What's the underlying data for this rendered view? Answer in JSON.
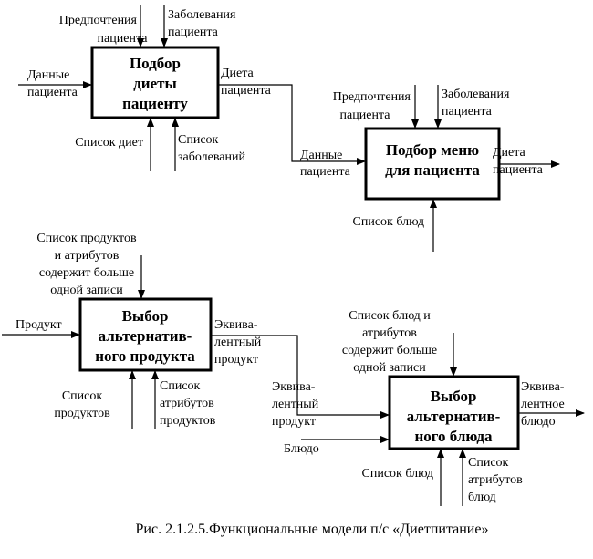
{
  "blocks": {
    "b1": {
      "title": [
        "Подбор",
        "диеты",
        "пациенту"
      ]
    },
    "b2": {
      "title": [
        "Подбор меню",
        "для пациента"
      ]
    },
    "b3": {
      "title": [
        "Выбор",
        "альтернатив-",
        "ного продукта"
      ]
    },
    "b4": {
      "title": [
        "Выбор",
        "альтернатив-",
        "ного блюда"
      ]
    }
  },
  "labels": {
    "b1_ctrl1": [
      "Предпочтения",
      "пациента"
    ],
    "b1_ctrl2": [
      "Заболевания",
      "пациента"
    ],
    "b1_in": [
      "Данные",
      "пациента"
    ],
    "b1_out": [
      "Диета",
      "пациента"
    ],
    "b1_mech1": [
      "Список диет"
    ],
    "b1_mech2": [
      "Список",
      "заболеваний"
    ],
    "b2_ctrl1": [
      "Предпочтения",
      "пациента"
    ],
    "b2_ctrl2": [
      "Заболевания",
      "пациента"
    ],
    "b2_in": [
      "Данные",
      "пациента"
    ],
    "b2_out": [
      "Диета",
      "пациента"
    ],
    "b2_mech": [
      "Список блюд"
    ],
    "b3_ctrl": [
      "Список продуктов",
      "и атрибутов",
      "содержит больше",
      "одной записи"
    ],
    "b3_in": [
      "Продукт"
    ],
    "b3_out": [
      "Эквива-",
      "лентный",
      "продукт"
    ],
    "b3_mech1": [
      "Список",
      "продуктов"
    ],
    "b3_mech2": [
      "Список",
      "атрибутов",
      "продуктов"
    ],
    "b4_ctrl": [
      "Список блюд и",
      "атрибутов",
      "содержит больше",
      "одной записи"
    ],
    "b4_in1": [
      "Эквива-",
      "лентный",
      "продукт"
    ],
    "b4_in2": [
      "Блюдо"
    ],
    "b4_out": [
      "Эквива-",
      "лентное",
      "блюдо"
    ],
    "b4_mech1": [
      "Список блюд"
    ],
    "b4_mech2": [
      "Список",
      "атрибутов",
      "блюд"
    ]
  },
  "caption": "Рис. 2.1.2.5.Функциональные модели п/с «Диетпитание»"
}
